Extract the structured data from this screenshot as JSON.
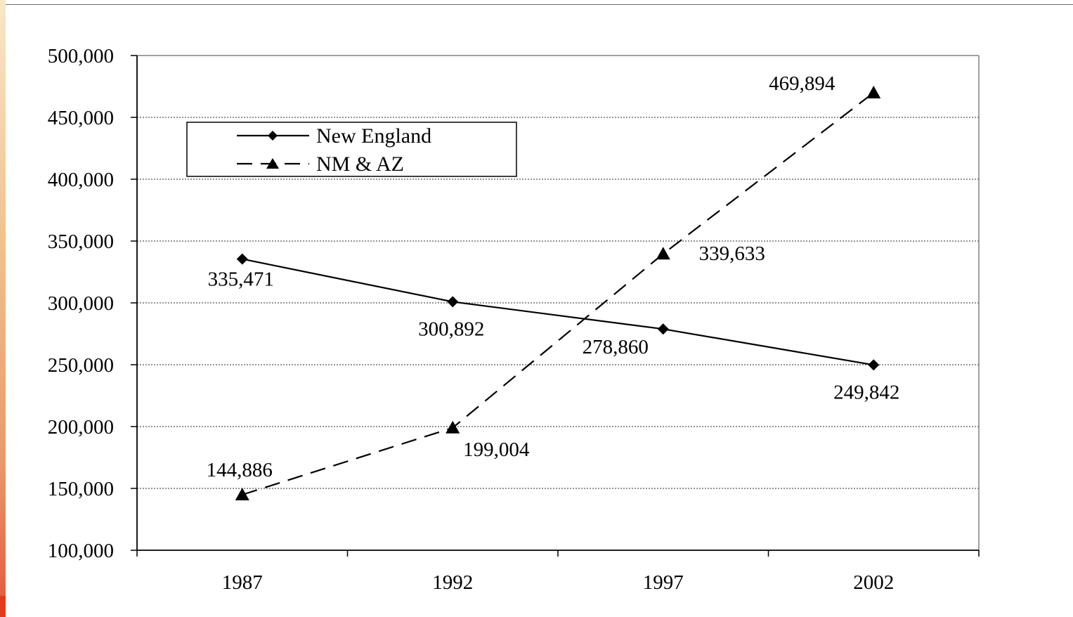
{
  "chart_data": {
    "type": "line",
    "title": "",
    "xlabel": "",
    "ylabel": "",
    "categories": [
      "1987",
      "1992",
      "1997",
      "2002"
    ],
    "ylim": [
      100000,
      500000
    ],
    "ytick_values": [
      100000,
      150000,
      200000,
      250000,
      300000,
      350000,
      400000,
      450000,
      500000
    ],
    "ytick_labels": [
      "100,000",
      "150,000",
      "200,000",
      "250,000",
      "300,000",
      "350,000",
      "400,000",
      "450,000",
      "500,000"
    ],
    "grid": "horizontal dotted",
    "legend_position": "top-left",
    "series": [
      {
        "name": "New England",
        "values": [
          335471,
          300892,
          278860,
          249842
        ],
        "labels": [
          "335,471",
          "300,892",
          "278,860",
          "249,842"
        ],
        "line_style": "solid",
        "marker": "diamond",
        "color": "#000000"
      },
      {
        "name": "NM & AZ",
        "values": [
          144886,
          199004,
          339633,
          469894
        ],
        "labels": [
          "144,886",
          "199,004",
          "339,633",
          "469,894"
        ],
        "line_style": "dashed",
        "marker": "triangle",
        "color": "#000000"
      }
    ]
  },
  "colors": {
    "axis": "#000000",
    "plot_border": "#808080",
    "grid": "#555555",
    "accent_gradient_top": "#f7e7c9",
    "accent_gradient_bottom": "#e2573a"
  }
}
